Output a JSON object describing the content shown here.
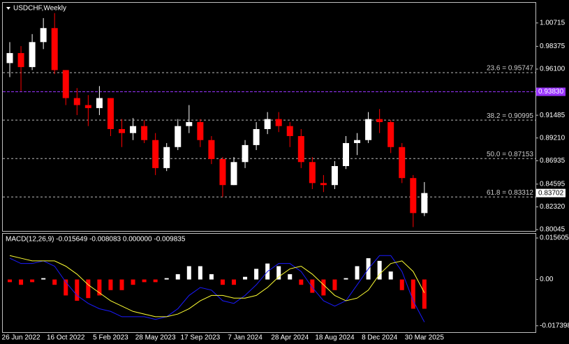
{
  "chart_data": [
    {
      "type": "candlestick",
      "title": "USDCHF,Weekly",
      "categories": [
        null,
        "26 Jun 2022",
        null,
        null,
        null,
        "16 Oct 2022",
        null,
        null,
        null,
        "5 Feb 2023",
        null,
        null,
        null,
        "28 May 2023",
        null,
        null,
        null,
        "17 Sep 2023",
        null,
        null,
        null,
        "7 Jan 2024",
        null,
        null,
        null,
        "28 Apr 2024",
        null,
        null,
        null,
        "18 Aug 2024",
        null,
        null,
        null,
        "8 Dec 2024",
        null,
        null,
        null,
        "30 Mar 2025"
      ],
      "open": [
        0.967,
        0.977,
        0.963,
        0.988,
        1.002,
        0.96,
        0.932,
        0.925,
        0.922,
        0.932,
        0.901,
        0.897,
        0.904,
        0.89,
        0.862,
        0.883,
        0.904,
        0.908,
        0.89,
        0.871,
        0.845,
        0.868,
        0.885,
        0.901,
        0.911,
        0.904,
        0.894,
        0.868,
        0.847,
        0.845,
        0.864,
        0.887,
        0.89,
        0.911,
        0.908,
        0.883,
        0.852,
        0.817
      ],
      "high": [
        0.988,
        0.984,
        0.996,
        1.012,
        1.017,
        0.96,
        0.942,
        0.935,
        0.944,
        0.932,
        0.911,
        0.912,
        0.91,
        0.897,
        0.887,
        0.911,
        0.925,
        0.911,
        0.894,
        0.873,
        0.873,
        0.89,
        0.908,
        0.918,
        0.918,
        0.908,
        0.901,
        0.873,
        0.855,
        0.869,
        0.894,
        0.897,
        0.918,
        0.921,
        0.91,
        0.887,
        0.855,
        0.848
      ],
      "low": [
        0.953,
        0.939,
        0.96,
        0.981,
        0.956,
        0.925,
        0.915,
        0.904,
        0.915,
        0.894,
        0.883,
        0.89,
        0.887,
        0.855,
        0.859,
        0.88,
        0.897,
        0.883,
        0.866,
        0.833,
        0.845,
        0.862,
        0.88,
        0.896,
        0.898,
        0.883,
        0.862,
        0.841,
        0.838,
        0.841,
        0.861,
        0.875,
        0.887,
        0.897,
        0.877,
        0.847,
        0.803,
        0.814
      ],
      "close": [
        0.977,
        0.963,
        0.988,
        1.002,
        0.96,
        0.932,
        0.925,
        0.922,
        0.932,
        0.901,
        0.897,
        0.904,
        0.89,
        0.862,
        0.883,
        0.904,
        0.908,
        0.89,
        0.871,
        0.845,
        0.868,
        0.885,
        0.901,
        0.911,
        0.904,
        0.894,
        0.868,
        0.847,
        0.845,
        0.864,
        0.887,
        0.89,
        0.911,
        0.908,
        0.883,
        0.852,
        0.817,
        0.83702
      ],
      "up_color": "#ffffff",
      "down_color": "#ff0000",
      "ylim": [
        0.7991,
        1.0273
      ],
      "yticks": [
        1.00715,
        0.98375,
        {
          "value": 0.961,
          "label": "0.96100"
        },
        0.91485,
        {
          "value": 0.8921,
          "label": "0.89210"
        },
        0.86935,
        0.84595,
        {
          "value": 0.8232,
          "label": "0.82320"
        },
        0.80045
      ],
      "levels": [
        {
          "value": 0.9383,
          "label": "0.93830",
          "color": "#9933ff"
        }
      ],
      "fibonacci": [
        {
          "value": 0.95747,
          "label": "23.6 = 0.95747"
        },
        {
          "value": 0.90995,
          "label": "38.2 = 0.90995"
        },
        {
          "value": 0.87153,
          "label": "50.0 = 0.87153"
        },
        {
          "value": 0.83312,
          "label": "61.8 = 0.83312"
        }
      ],
      "last_price": 0.83702
    },
    {
      "type": "macd",
      "title": "MACD(12,26,9) -0.015649 -0.008083 0.000000 -0.009835",
      "ylim": [
        -0.0198,
        0.0172
      ],
      "yticks": [
        0.015605,
        {
          "value": 0,
          "label": "0.00"
        },
        -0.017398
      ],
      "histogram": {
        "up_color": "#ffffff",
        "down_color": "#ff0000",
        "values": [
          -0.001,
          -0.002,
          -0.001,
          0.0005,
          -0.002,
          -0.006,
          -0.008,
          -0.007,
          -0.006,
          -0.004,
          -0.004,
          -0.002,
          -0.001,
          -0.001,
          0.0005,
          0.002,
          0.005,
          0.005,
          0.002,
          -0.002,
          -0.002,
          0.001,
          0.004,
          0.006,
          0.005,
          0.002,
          -0.002,
          -0.005,
          -0.006,
          -0.004,
          0.0005,
          0.005,
          0.008,
          0.007,
          0.003,
          -0.004,
          -0.011,
          -0.011
        ]
      },
      "macd": {
        "color": "#1a1aff",
        "values": [
          0.008,
          0.006,
          0.006,
          0.007,
          0.005,
          -0.001,
          -0.006,
          -0.009,
          -0.011,
          -0.012,
          -0.014,
          -0.014,
          -0.014,
          -0.015,
          -0.014,
          -0.011,
          -0.006,
          -0.003,
          -0.004,
          -0.008,
          -0.009,
          -0.006,
          -0.002,
          0.003,
          0.006,
          0.006,
          0.003,
          -0.003,
          -0.008,
          -0.01,
          -0.008,
          -0.002,
          0.004,
          0.009,
          0.009,
          0.003,
          -0.008,
          -0.016
        ]
      },
      "signal": {
        "color": "#ffff33",
        "values": [
          0.009,
          0.008,
          0.007,
          0.007,
          0.007,
          0.005,
          0.002,
          -0.002,
          -0.005,
          -0.008,
          -0.01,
          -0.012,
          -0.013,
          -0.014,
          -0.014,
          -0.013,
          -0.011,
          -0.008,
          -0.006,
          -0.006,
          -0.007,
          -0.007,
          -0.006,
          -0.003,
          0.001,
          0.004,
          0.005,
          0.002,
          -0.002,
          -0.006,
          -0.008,
          -0.007,
          -0.004,
          0.002,
          0.006,
          0.007,
          0.003,
          -0.005
        ]
      }
    }
  ]
}
